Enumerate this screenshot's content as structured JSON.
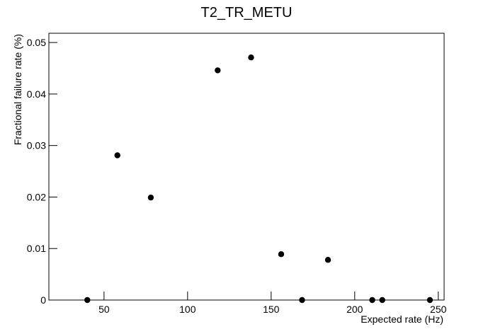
{
  "chart_data": {
    "type": "scatter",
    "title": "T2_TR_METU",
    "x_label": "Expected rate (Hz)",
    "y_label": "Fractional failure rate (%)",
    "x": [
      40,
      58,
      78,
      118,
      138,
      156,
      168.5,
      184,
      210.5,
      216.5,
      245
    ],
    "values": [
      0,
      0.0281,
      0.0199,
      0.0446,
      0.0471,
      0.0089,
      0,
      0.0078,
      0,
      0,
      0
    ],
    "color": "#000000",
    "xlim": [
      17,
      253.5
    ],
    "xticks": [
      50,
      100,
      150,
      200,
      250
    ],
    "ylim": [
      0,
      0.0518
    ],
    "yticks": [
      0,
      0.01,
      0.02,
      0.03,
      0.04,
      0.05
    ]
  }
}
